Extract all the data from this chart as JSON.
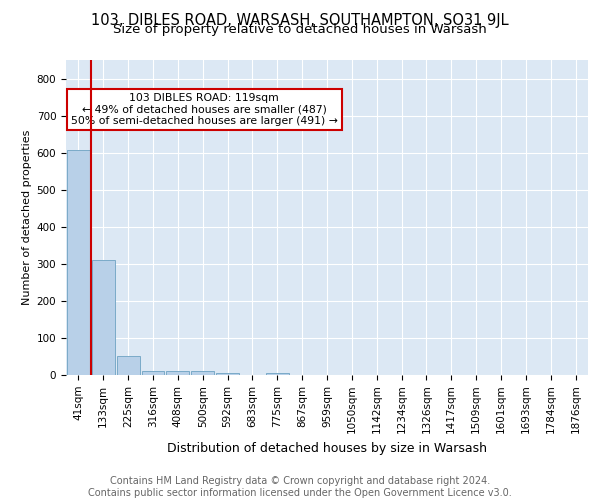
{
  "title": "103, DIBLES ROAD, WARSASH, SOUTHAMPTON, SO31 9JL",
  "subtitle": "Size of property relative to detached houses in Warsash",
  "xlabel": "Distribution of detached houses by size in Warsash",
  "ylabel": "Number of detached properties",
  "categories": [
    "41sqm",
    "133sqm",
    "225sqm",
    "316sqm",
    "408sqm",
    "500sqm",
    "592sqm",
    "683sqm",
    "775sqm",
    "867sqm",
    "959sqm",
    "1050sqm",
    "1142sqm",
    "1234sqm",
    "1326sqm",
    "1417sqm",
    "1509sqm",
    "1601sqm",
    "1693sqm",
    "1784sqm",
    "1876sqm"
  ],
  "values": [
    608,
    310,
    50,
    10,
    12,
    12,
    5,
    0,
    5,
    0,
    0,
    0,
    0,
    0,
    0,
    0,
    0,
    0,
    0,
    0,
    0
  ],
  "bar_color": "#b8d0e8",
  "bar_edge_color": "#7aaac8",
  "vline_x": 0.5,
  "vline_color": "#cc0000",
  "annotation_line1": "103 DIBLES ROAD: 119sqm",
  "annotation_line2": "← 49% of detached houses are smaller (487)",
  "annotation_line3": "50% of semi-detached houses are larger (491) →",
  "annotation_box_color": "#cc0000",
  "ylim": [
    0,
    850
  ],
  "yticks": [
    0,
    100,
    200,
    300,
    400,
    500,
    600,
    700,
    800
  ],
  "background_color": "#dce8f4",
  "plot_bg_color": "#dce8f4",
  "footer_text": "Contains HM Land Registry data © Crown copyright and database right 2024.\nContains public sector information licensed under the Open Government Licence v3.0.",
  "title_fontsize": 10.5,
  "subtitle_fontsize": 9.5,
  "xlabel_fontsize": 9,
  "ylabel_fontsize": 8,
  "tick_fontsize": 7.5,
  "footer_fontsize": 7
}
